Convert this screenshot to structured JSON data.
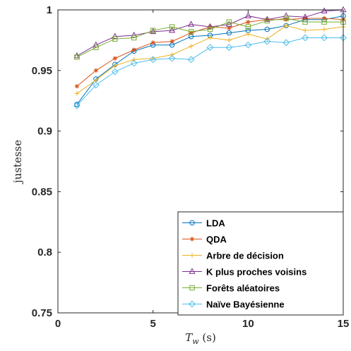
{
  "chart_data": {
    "type": "line",
    "xlabel_main": "T",
    "xlabel_sub": "w",
    "xlabel_unit": " (s)",
    "ylabel": "justesse",
    "xlim": [
      0,
      15
    ],
    "ylim": [
      0.75,
      1
    ],
    "xticks": [
      0,
      5,
      10,
      15
    ],
    "yticks": [
      0.75,
      0.8,
      0.85,
      0.9,
      0.95,
      1
    ],
    "ytick_labels": [
      "0.75",
      "0.8",
      "0.85",
      "0.9",
      "0.95",
      "1"
    ],
    "grid": false,
    "legend_position": "bottom-right",
    "x": [
      1,
      2,
      3,
      4,
      5,
      6,
      7,
      8,
      9,
      10,
      11,
      12,
      13,
      14,
      15
    ],
    "series": [
      {
        "name": "LDA",
        "color": "#0072BD",
        "marker": "circle",
        "values": [
          0.922,
          0.943,
          0.955,
          0.966,
          0.971,
          0.971,
          0.978,
          0.979,
          0.981,
          0.983,
          0.984,
          0.987,
          0.992,
          0.992,
          0.995
        ]
      },
      {
        "name": "QDA",
        "color": "#D95319",
        "marker": "star",
        "values": [
          0.937,
          0.95,
          0.96,
          0.967,
          0.973,
          0.974,
          0.981,
          0.986,
          0.985,
          0.99,
          0.992,
          0.992,
          0.993,
          0.993,
          0.992
        ]
      },
      {
        "name": "Arbre de décision",
        "color": "#EDB120",
        "marker": "plus",
        "values": [
          0.931,
          0.942,
          0.954,
          0.959,
          0.96,
          0.963,
          0.97,
          0.977,
          0.975,
          0.98,
          0.976,
          0.987,
          0.983,
          0.984,
          0.986
        ]
      },
      {
        "name": "K plus proches voisins",
        "color": "#7E2F8E",
        "marker": "triangle",
        "values": [
          0.962,
          0.971,
          0.978,
          0.979,
          0.982,
          0.983,
          0.988,
          0.986,
          0.988,
          0.995,
          0.992,
          0.995,
          0.994,
          0.999,
          1.0
        ]
      },
      {
        "name": "Forêts aléatoires",
        "color": "#77AC30",
        "marker": "square",
        "values": [
          0.961,
          0.969,
          0.976,
          0.977,
          0.983,
          0.986,
          0.982,
          0.984,
          0.99,
          0.986,
          0.991,
          0.993,
          0.99,
          0.99,
          0.99
        ]
      },
      {
        "name": "Naïve Bayésienne",
        "color": "#4DBEEE",
        "marker": "diamond",
        "values": [
          0.921,
          0.938,
          0.949,
          0.956,
          0.959,
          0.96,
          0.959,
          0.969,
          0.969,
          0.971,
          0.974,
          0.973,
          0.977,
          0.977,
          0.977
        ]
      }
    ]
  }
}
